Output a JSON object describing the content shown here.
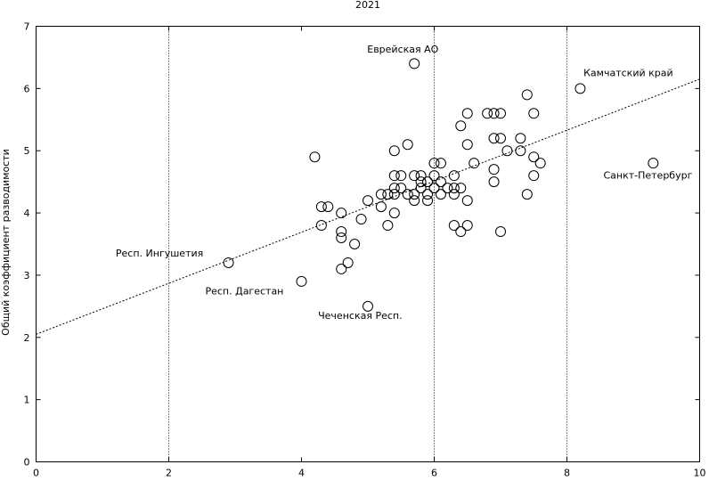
{
  "chart_data": {
    "type": "scatter",
    "title": "2021",
    "xlabel": "",
    "ylabel": "Общий коэффициент разводимости",
    "xlim": [
      0,
      10
    ],
    "ylim": [
      0,
      7
    ],
    "xticks": [
      "0",
      "2",
      "4",
      "6",
      "8",
      "10"
    ],
    "yticks": [
      "0",
      "1",
      "2",
      "3",
      "4",
      "5",
      "6",
      "7"
    ],
    "vertical_lines_at": [
      2,
      6,
      8
    ],
    "trend_line": {
      "x": [
        0,
        10
      ],
      "y": [
        2.05,
        6.15
      ]
    },
    "points": [
      {
        "x": 5.7,
        "y": 6.4
      },
      {
        "x": 8.2,
        "y": 6.0
      },
      {
        "x": 7.4,
        "y": 5.9
      },
      {
        "x": 7.5,
        "y": 5.6
      },
      {
        "x": 6.8,
        "y": 5.6
      },
      {
        "x": 6.9,
        "y": 5.6
      },
      {
        "x": 7.0,
        "y": 5.6
      },
      {
        "x": 6.5,
        "y": 5.6
      },
      {
        "x": 6.4,
        "y": 5.4
      },
      {
        "x": 6.9,
        "y": 5.2
      },
      {
        "x": 7.0,
        "y": 5.2
      },
      {
        "x": 7.3,
        "y": 5.2
      },
      {
        "x": 5.6,
        "y": 5.1
      },
      {
        "x": 6.5,
        "y": 5.1
      },
      {
        "x": 5.4,
        "y": 5.0
      },
      {
        "x": 7.1,
        "y": 5.0
      },
      {
        "x": 7.3,
        "y": 5.0
      },
      {
        "x": 4.2,
        "y": 4.9
      },
      {
        "x": 7.5,
        "y": 4.9
      },
      {
        "x": 6.0,
        "y": 4.8
      },
      {
        "x": 6.1,
        "y": 4.8
      },
      {
        "x": 6.6,
        "y": 4.8
      },
      {
        "x": 7.6,
        "y": 4.8
      },
      {
        "x": 9.3,
        "y": 4.8
      },
      {
        "x": 6.9,
        "y": 4.7
      },
      {
        "x": 5.4,
        "y": 4.6
      },
      {
        "x": 5.5,
        "y": 4.6
      },
      {
        "x": 5.7,
        "y": 4.6
      },
      {
        "x": 5.8,
        "y": 4.6
      },
      {
        "x": 6.0,
        "y": 4.6
      },
      {
        "x": 6.3,
        "y": 4.6
      },
      {
        "x": 7.5,
        "y": 4.6
      },
      {
        "x": 5.8,
        "y": 4.5
      },
      {
        "x": 5.9,
        "y": 4.5
      },
      {
        "x": 6.1,
        "y": 4.5
      },
      {
        "x": 6.9,
        "y": 4.5
      },
      {
        "x": 5.4,
        "y": 4.4
      },
      {
        "x": 5.5,
        "y": 4.4
      },
      {
        "x": 5.8,
        "y": 4.4
      },
      {
        "x": 6.0,
        "y": 4.4
      },
      {
        "x": 6.2,
        "y": 4.4
      },
      {
        "x": 6.3,
        "y": 4.4
      },
      {
        "x": 6.4,
        "y": 4.4
      },
      {
        "x": 5.2,
        "y": 4.3
      },
      {
        "x": 5.3,
        "y": 4.3
      },
      {
        "x": 5.4,
        "y": 4.3
      },
      {
        "x": 5.6,
        "y": 4.3
      },
      {
        "x": 5.7,
        "y": 4.3
      },
      {
        "x": 5.9,
        "y": 4.3
      },
      {
        "x": 6.1,
        "y": 4.3
      },
      {
        "x": 6.3,
        "y": 4.3
      },
      {
        "x": 7.4,
        "y": 4.3
      },
      {
        "x": 5.0,
        "y": 4.2
      },
      {
        "x": 5.7,
        "y": 4.2
      },
      {
        "x": 5.9,
        "y": 4.2
      },
      {
        "x": 6.5,
        "y": 4.2
      },
      {
        "x": 4.3,
        "y": 4.1
      },
      {
        "x": 4.4,
        "y": 4.1
      },
      {
        "x": 5.2,
        "y": 4.1
      },
      {
        "x": 4.6,
        "y": 4.0
      },
      {
        "x": 5.4,
        "y": 4.0
      },
      {
        "x": 4.9,
        "y": 3.9
      },
      {
        "x": 4.3,
        "y": 3.8
      },
      {
        "x": 5.3,
        "y": 3.8
      },
      {
        "x": 6.3,
        "y": 3.8
      },
      {
        "x": 6.5,
        "y": 3.8
      },
      {
        "x": 4.6,
        "y": 3.7
      },
      {
        "x": 6.4,
        "y": 3.7
      },
      {
        "x": 7.0,
        "y": 3.7
      },
      {
        "x": 4.6,
        "y": 3.6
      },
      {
        "x": 4.8,
        "y": 3.5
      },
      {
        "x": 2.9,
        "y": 3.2
      },
      {
        "x": 4.7,
        "y": 3.2
      },
      {
        "x": 4.6,
        "y": 3.1
      },
      {
        "x": 4.0,
        "y": 2.9
      },
      {
        "x": 5.0,
        "y": 2.5
      }
    ],
    "annotations": [
      {
        "text": "Еврейская АО",
        "x": 4.99,
        "y": 6.58,
        "anchor": "start"
      },
      {
        "text": "Камчатский край",
        "x": 8.25,
        "y": 6.2,
        "anchor": "start"
      },
      {
        "text": "Санкт-Петербург",
        "x": 8.55,
        "y": 4.55,
        "anchor": "start"
      },
      {
        "text": "Респ. Ингушетия",
        "x": 1.2,
        "y": 3.3,
        "anchor": "start"
      },
      {
        "text": "Респ. Дагестан",
        "x": 2.55,
        "y": 2.69,
        "anchor": "start"
      },
      {
        "text": "Чеченская Респ.",
        "x": 4.25,
        "y": 2.3,
        "anchor": "start"
      }
    ]
  }
}
